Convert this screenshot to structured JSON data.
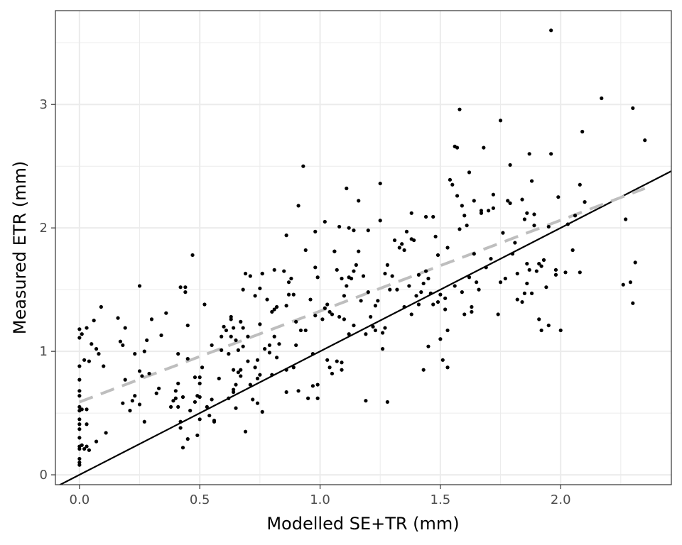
{
  "chart_data": {
    "type": "scatter",
    "title": "",
    "xlabel": "Modelled SE+TR (mm)",
    "ylabel": "Measured ETR (mm)",
    "xlim": [
      -0.1,
      2.46
    ],
    "ylim": [
      -0.08,
      3.76
    ],
    "x_ticks": [
      0.0,
      0.5,
      1.0,
      1.5,
      2.0
    ],
    "x_tick_labels": [
      "0.0",
      "0.5",
      "1.0",
      "1.5",
      "2.0"
    ],
    "y_ticks": [
      0,
      1,
      2,
      3
    ],
    "y_tick_labels": [
      "0",
      "1",
      "2",
      "3"
    ],
    "grid": true,
    "legend": "none",
    "colors": {
      "points": "#000000",
      "one_to_one_line": "#000000",
      "fit_line": "#bebebe",
      "grid": "#ebebeb",
      "panel_border": "#333333"
    },
    "reference_lines": [
      {
        "name": "1:1",
        "style": "solid",
        "color": "#000000",
        "x": [
          -0.1,
          2.46
        ],
        "y": [
          -0.1,
          2.46
        ]
      },
      {
        "name": "fit",
        "style": "dashed",
        "color": "#bebebe",
        "x": [
          0.0,
          2.35
        ],
        "y": [
          0.59,
          2.32
        ]
      }
    ],
    "points": [
      [
        0.0,
        1.18
      ],
      [
        0.0,
        1.11
      ],
      [
        0.0,
        0.88
      ],
      [
        0.0,
        0.77
      ],
      [
        0.0,
        0.68
      ],
      [
        0.0,
        0.64
      ],
      [
        0.0,
        0.55
      ],
      [
        0.0,
        0.52
      ],
      [
        0.0,
        0.45
      ],
      [
        0.0,
        0.41
      ],
      [
        0.0,
        0.37
      ],
      [
        0.0,
        0.3
      ],
      [
        0.0,
        0.23
      ],
      [
        0.0,
        0.21
      ],
      [
        0.0,
        0.13
      ],
      [
        0.0,
        0.08
      ],
      [
        0.0,
        0.1
      ],
      [
        0.01,
        1.14
      ],
      [
        0.01,
        0.53
      ],
      [
        0.01,
        0.24
      ],
      [
        0.02,
        0.93
      ],
      [
        0.02,
        0.21
      ],
      [
        0.03,
        0.23
      ],
      [
        0.03,
        0.41
      ],
      [
        0.03,
        1.19
      ],
      [
        0.03,
        0.53
      ],
      [
        0.04,
        0.92
      ],
      [
        0.04,
        0.2
      ],
      [
        0.05,
        1.06
      ],
      [
        0.06,
        1.25
      ],
      [
        0.07,
        1.02
      ],
      [
        0.07,
        0.27
      ],
      [
        0.08,
        0.98
      ],
      [
        0.09,
        1.36
      ],
      [
        0.1,
        0.88
      ],
      [
        0.11,
        0.34
      ],
      [
        0.16,
        1.27
      ],
      [
        0.17,
        1.08
      ],
      [
        0.18,
        1.05
      ],
      [
        0.18,
        0.58
      ],
      [
        0.19,
        0.77
      ],
      [
        0.19,
        1.19
      ],
      [
        0.21,
        0.52
      ],
      [
        0.22,
        0.6
      ],
      [
        0.23,
        0.64
      ],
      [
        0.23,
        0.98
      ],
      [
        0.25,
        0.57
      ],
      [
        0.25,
        0.84
      ],
      [
        0.25,
        1.53
      ],
      [
        0.26,
        0.8
      ],
      [
        0.27,
        0.43
      ],
      [
        0.27,
        1.0
      ],
      [
        0.28,
        1.09
      ],
      [
        0.29,
        0.82
      ],
      [
        0.3,
        1.26
      ],
      [
        0.32,
        0.66
      ],
      [
        0.33,
        0.7
      ],
      [
        0.34,
        1.13
      ],
      [
        0.36,
        1.31
      ],
      [
        0.38,
        0.55
      ],
      [
        0.39,
        0.6
      ],
      [
        0.4,
        0.68
      ],
      [
        0.4,
        0.62
      ],
      [
        0.41,
        0.74
      ],
      [
        0.41,
        0.55
      ],
      [
        0.41,
        0.98
      ],
      [
        0.42,
        1.52
      ],
      [
        0.42,
        0.43
      ],
      [
        0.42,
        0.38
      ],
      [
        0.43,
        0.22
      ],
      [
        0.43,
        0.63
      ],
      [
        0.44,
        1.52
      ],
      [
        0.44,
        1.48
      ],
      [
        0.45,
        0.29
      ],
      [
        0.45,
        0.94
      ],
      [
        0.45,
        1.21
      ],
      [
        0.46,
        0.52
      ],
      [
        0.47,
        1.78
      ],
      [
        0.48,
        0.79
      ],
      [
        0.48,
        0.59
      ],
      [
        0.49,
        0.64
      ],
      [
        0.49,
        0.32
      ],
      [
        0.5,
        0.74
      ],
      [
        0.5,
        0.45
      ],
      [
        0.5,
        0.63
      ],
      [
        0.5,
        0.79
      ],
      [
        0.51,
        0.87
      ],
      [
        0.52,
        1.38
      ],
      [
        0.53,
        0.55
      ],
      [
        0.54,
        0.48
      ],
      [
        0.55,
        1.05
      ],
      [
        0.55,
        0.61
      ],
      [
        0.56,
        0.43
      ],
      [
        0.56,
        0.44
      ],
      [
        0.58,
        0.78
      ],
      [
        0.59,
        1.01
      ],
      [
        0.59,
        1.12
      ],
      [
        0.6,
        1.2
      ],
      [
        0.61,
        1.17
      ],
      [
        0.62,
        0.62
      ],
      [
        0.62,
        0.98
      ],
      [
        0.63,
        1.28
      ],
      [
        0.63,
        1.26
      ],
      [
        0.63,
        1.12
      ],
      [
        0.64,
        0.67
      ],
      [
        0.64,
        0.69
      ],
      [
        0.64,
        0.85
      ],
      [
        0.64,
        1.19
      ],
      [
        0.65,
        1.09
      ],
      [
        0.65,
        0.73
      ],
      [
        0.65,
        0.54
      ],
      [
        0.66,
        0.83
      ],
      [
        0.66,
        1.01
      ],
      [
        0.67,
        0.85
      ],
      [
        0.67,
        0.8
      ],
      [
        0.67,
        1.24
      ],
      [
        0.68,
        1.19
      ],
      [
        0.68,
        1.5
      ],
      [
        0.68,
        1.04
      ],
      [
        0.69,
        1.63
      ],
      [
        0.69,
        0.35
      ],
      [
        0.7,
        1.12
      ],
      [
        0.7,
        0.92
      ],
      [
        0.71,
        0.73
      ],
      [
        0.71,
        1.61
      ],
      [
        0.72,
        0.61
      ],
      [
        0.73,
        0.87
      ],
      [
        0.73,
        1.45
      ],
      [
        0.74,
        0.93
      ],
      [
        0.74,
        0.58
      ],
      [
        0.74,
        0.78
      ],
      [
        0.75,
        1.22
      ],
      [
        0.75,
        1.51
      ],
      [
        0.75,
        0.81
      ],
      [
        0.76,
        1.63
      ],
      [
        0.76,
        1.63
      ],
      [
        0.76,
        0.51
      ],
      [
        0.77,
        1.02
      ],
      [
        0.78,
        1.42
      ],
      [
        0.79,
        1.05
      ],
      [
        0.79,
        0.99
      ],
      [
        0.8,
        1.32
      ],
      [
        0.8,
        0.81
      ],
      [
        0.81,
        1.12
      ],
      [
        0.81,
        1.34
      ],
      [
        0.81,
        1.66
      ],
      [
        0.82,
        1.36
      ],
      [
        0.82,
        0.95
      ],
      [
        0.83,
        1.06
      ],
      [
        0.85,
        1.65
      ],
      [
        0.86,
        0.85
      ],
      [
        0.86,
        0.67
      ],
      [
        0.86,
        1.37
      ],
      [
        0.86,
        1.94
      ],
      [
        0.87,
        1.56
      ],
      [
        0.87,
        1.46
      ],
      [
        0.88,
        1.59
      ],
      [
        0.89,
        1.46
      ],
      [
        0.89,
        0.87
      ],
      [
        0.9,
        1.05
      ],
      [
        0.9,
        1.24
      ],
      [
        0.91,
        0.68
      ],
      [
        0.91,
        2.18
      ],
      [
        0.92,
        1.17
      ],
      [
        0.93,
        2.5
      ],
      [
        0.94,
        1.82
      ],
      [
        0.94,
        1.17
      ],
      [
        0.95,
        0.62
      ],
      [
        0.96,
        1.42
      ],
      [
        0.97,
        0.72
      ],
      [
        0.97,
        0.98
      ],
      [
        0.98,
        1.29
      ],
      [
        0.98,
        1.68
      ],
      [
        0.98,
        1.97
      ],
      [
        0.99,
        1.6
      ],
      [
        0.99,
        0.62
      ],
      [
        0.99,
        0.73
      ],
      [
        1.01,
        1.26
      ],
      [
        1.02,
        2.05
      ],
      [
        1.02,
        1.35
      ],
      [
        1.03,
        0.93
      ],
      [
        1.03,
        1.38
      ],
      [
        1.04,
        1.32
      ],
      [
        1.04,
        0.87
      ],
      [
        1.05,
        1.3
      ],
      [
        1.05,
        0.82
      ],
      [
        1.06,
        1.81
      ],
      [
        1.06,
        1.81
      ],
      [
        1.07,
        0.92
      ],
      [
        1.07,
        1.66
      ],
      [
        1.08,
        1.28
      ],
      [
        1.08,
        2.01
      ],
      [
        1.09,
        1.59
      ],
      [
        1.09,
        0.85
      ],
      [
        1.09,
        0.91
      ],
      [
        1.1,
        1.26
      ],
      [
        1.1,
        1.45
      ],
      [
        1.11,
        2.32
      ],
      [
        1.11,
        1.53
      ],
      [
        1.12,
        2.0
      ],
      [
        1.12,
        1.14
      ],
      [
        1.12,
        1.6
      ],
      [
        1.13,
        1.59
      ],
      [
        1.14,
        1.21
      ],
      [
        1.14,
        1.65
      ],
      [
        1.14,
        1.98
      ],
      [
        1.15,
        1.7
      ],
      [
        1.16,
        2.22
      ],
      [
        1.16,
        1.81
      ],
      [
        1.17,
        1.41
      ],
      [
        1.18,
        1.61
      ],
      [
        1.19,
        1.14
      ],
      [
        1.19,
        0.6
      ],
      [
        1.2,
        1.48
      ],
      [
        1.2,
        1.98
      ],
      [
        1.21,
        1.28
      ],
      [
        1.22,
        1.2
      ],
      [
        1.23,
        1.37
      ],
      [
        1.23,
        1.17
      ],
      [
        1.24,
        1.41
      ],
      [
        1.25,
        2.36
      ],
      [
        1.25,
        2.06
      ],
      [
        1.26,
        1.02
      ],
      [
        1.26,
        1.15
      ],
      [
        1.27,
        1.63
      ],
      [
        1.27,
        1.19
      ],
      [
        1.28,
        1.7
      ],
      [
        1.28,
        0.59
      ],
      [
        1.29,
        1.5
      ],
      [
        1.3,
        1.61
      ],
      [
        1.31,
        1.9
      ],
      [
        1.32,
        1.5
      ],
      [
        1.33,
        1.84
      ],
      [
        1.34,
        1.87
      ],
      [
        1.35,
        1.36
      ],
      [
        1.35,
        1.82
      ],
      [
        1.36,
        1.97
      ],
      [
        1.37,
        1.53
      ],
      [
        1.38,
        2.12
      ],
      [
        1.38,
        1.91
      ],
      [
        1.38,
        1.3
      ],
      [
        1.39,
        1.9
      ],
      [
        1.4,
        1.45
      ],
      [
        1.41,
        1.38
      ],
      [
        1.41,
        1.62
      ],
      [
        1.42,
        1.48
      ],
      [
        1.43,
        1.55
      ],
      [
        1.43,
        0.85
      ],
      [
        1.44,
        1.65
      ],
      [
        1.44,
        2.09
      ],
      [
        1.45,
        1.04
      ],
      [
        1.45,
        1.59
      ],
      [
        1.46,
        1.47
      ],
      [
        1.47,
        2.09
      ],
      [
        1.47,
        1.38
      ],
      [
        1.48,
        1.93
      ],
      [
        1.49,
        1.78
      ],
      [
        1.49,
        1.4
      ],
      [
        1.5,
        1.46
      ],
      [
        1.5,
        1.1
      ],
      [
        1.51,
        0.93
      ],
      [
        1.52,
        1.34
      ],
      [
        1.52,
        1.43
      ],
      [
        1.53,
        0.87
      ],
      [
        1.53,
        1.17
      ],
      [
        1.53,
        1.84
      ],
      [
        1.54,
        2.39
      ],
      [
        1.55,
        2.35
      ],
      [
        1.56,
        1.53
      ],
      [
        1.56,
        2.66
      ],
      [
        1.57,
        2.65
      ],
      [
        1.57,
        2.26
      ],
      [
        1.58,
        1.99
      ],
      [
        1.58,
        2.96
      ],
      [
        1.59,
        2.18
      ],
      [
        1.59,
        1.48
      ],
      [
        1.6,
        1.3
      ],
      [
        1.6,
        2.1
      ],
      [
        1.61,
        2.02
      ],
      [
        1.62,
        1.6
      ],
      [
        1.62,
        2.45
      ],
      [
        1.63,
        1.36
      ],
      [
        1.63,
        1.32
      ],
      [
        1.64,
        1.79
      ],
      [
        1.64,
        2.22
      ],
      [
        1.65,
        1.56
      ],
      [
        1.66,
        1.5
      ],
      [
        1.67,
        2.14
      ],
      [
        1.67,
        2.12
      ],
      [
        1.68,
        2.65
      ],
      [
        1.69,
        1.68
      ],
      [
        1.7,
        2.14
      ],
      [
        1.71,
        1.75
      ],
      [
        1.72,
        2.27
      ],
      [
        1.72,
        2.16
      ],
      [
        1.74,
        1.3
      ],
      [
        1.75,
        1.56
      ],
      [
        1.75,
        2.87
      ],
      [
        1.76,
        1.96
      ],
      [
        1.77,
        1.59
      ],
      [
        1.78,
        2.22
      ],
      [
        1.79,
        2.2
      ],
      [
        1.79,
        2.51
      ],
      [
        1.8,
        1.79
      ],
      [
        1.81,
        1.88
      ],
      [
        1.82,
        1.42
      ],
      [
        1.82,
        1.63
      ],
      [
        1.84,
        2.23
      ],
      [
        1.84,
        1.4
      ],
      [
        1.85,
        1.47
      ],
      [
        1.85,
        2.07
      ],
      [
        1.86,
        1.55
      ],
      [
        1.86,
        1.71
      ],
      [
        1.86,
        2.12
      ],
      [
        1.87,
        2.6
      ],
      [
        1.87,
        1.66
      ],
      [
        1.88,
        2.38
      ],
      [
        1.88,
        1.47
      ],
      [
        1.89,
        2.11
      ],
      [
        1.89,
        2.02
      ],
      [
        1.9,
        1.65
      ],
      [
        1.91,
        1.26
      ],
      [
        1.91,
        1.71
      ],
      [
        1.92,
        1.17
      ],
      [
        1.92,
        1.69
      ],
      [
        1.93,
        1.74
      ],
      [
        1.94,
        1.52
      ],
      [
        1.95,
        1.21
      ],
      [
        1.95,
        2.01
      ],
      [
        1.96,
        3.6
      ],
      [
        1.96,
        2.6
      ],
      [
        1.98,
        1.62
      ],
      [
        1.98,
        1.66
      ],
      [
        1.99,
        2.25
      ],
      [
        2.0,
        1.17
      ],
      [
        2.02,
        1.64
      ],
      [
        2.03,
        2.03
      ],
      [
        2.05,
        1.82
      ],
      [
        2.06,
        2.1
      ],
      [
        2.08,
        2.35
      ],
      [
        2.08,
        1.64
      ],
      [
        2.09,
        2.78
      ],
      [
        2.1,
        2.21
      ],
      [
        2.17,
        3.05
      ],
      [
        2.26,
        1.54
      ],
      [
        2.27,
        2.07
      ],
      [
        2.29,
        1.56
      ],
      [
        2.3,
        1.39
      ],
      [
        2.3,
        2.97
      ],
      [
        2.31,
        1.72
      ],
      [
        2.35,
        2.71
      ]
    ]
  }
}
